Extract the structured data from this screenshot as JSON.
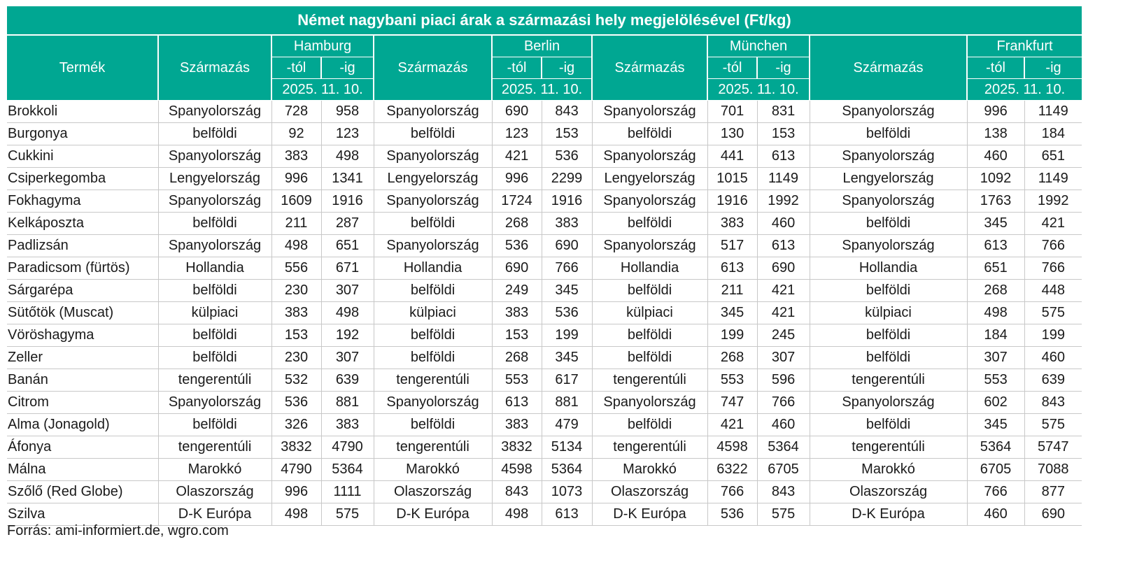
{
  "title": "Német nagybani piaci árak a származási hely megjelölésével (Ft/kg)",
  "headers": {
    "product": "Termék",
    "origin": "Származás",
    "from": "-tól",
    "to": "-ig",
    "date": "2025. 11. 10.",
    "cities": [
      "Hamburg",
      "Berlin",
      "München",
      "Frankfurt"
    ]
  },
  "rows": [
    [
      "Brokkoli",
      "Spanyolország",
      "728",
      "958",
      "Spanyolország",
      "690",
      "843",
      "Spanyolország",
      "701",
      "831",
      "Spanyolország",
      "996",
      "1149"
    ],
    [
      "Burgonya",
      "belföldi",
      "92",
      "123",
      "belföldi",
      "123",
      "153",
      "belföldi",
      "130",
      "153",
      "belföldi",
      "138",
      "184"
    ],
    [
      "Cukkini",
      "Spanyolország",
      "383",
      "498",
      "Spanyolország",
      "421",
      "536",
      "Spanyolország",
      "441",
      "613",
      "Spanyolország",
      "460",
      "651"
    ],
    [
      "Csiperkegomba",
      "Lengyelország",
      "996",
      "1341",
      "Lengyelország",
      "996",
      "2299",
      "Lengyelország",
      "1015",
      "1149",
      "Lengyelország",
      "1092",
      "1149"
    ],
    [
      "Fokhagyma",
      "Spanyolország",
      "1609",
      "1916",
      "Spanyolország",
      "1724",
      "1916",
      "Spanyolország",
      "1916",
      "1992",
      "Spanyolország",
      "1763",
      "1992"
    ],
    [
      "Kelkáposzta",
      "belföldi",
      "211",
      "287",
      "belföldi",
      "268",
      "383",
      "belföldi",
      "383",
      "460",
      "belföldi",
      "345",
      "421"
    ],
    [
      "Padlizsán",
      "Spanyolország",
      "498",
      "651",
      "Spanyolország",
      "536",
      "690",
      "Spanyolország",
      "517",
      "613",
      "Spanyolország",
      "613",
      "766"
    ],
    [
      "Paradicsom (fürtös)",
      "Hollandia",
      "556",
      "671",
      "Hollandia",
      "690",
      "766",
      "Hollandia",
      "613",
      "690",
      "Hollandia",
      "651",
      "766"
    ],
    [
      "Sárgarépa",
      "belföldi",
      "230",
      "307",
      "belföldi",
      "249",
      "345",
      "belföldi",
      "211",
      "421",
      "belföldi",
      "268",
      "448"
    ],
    [
      "Sütőtök (Muscat)",
      "külpiaci",
      "383",
      "498",
      "külpiaci",
      "383",
      "536",
      "külpiaci",
      "345",
      "421",
      "külpiaci",
      "498",
      "575"
    ],
    [
      "Vöröshagyma",
      "belföldi",
      "153",
      "192",
      "belföldi",
      "153",
      "199",
      "belföldi",
      "199",
      "245",
      "belföldi",
      "184",
      "199"
    ],
    [
      "Zeller",
      "belföldi",
      "230",
      "307",
      "belföldi",
      "268",
      "345",
      "belföldi",
      "268",
      "307",
      "belföldi",
      "307",
      "460"
    ],
    [
      "Banán",
      "tengerentúli",
      "532",
      "639",
      "tengerentúli",
      "553",
      "617",
      "tengerentúli",
      "553",
      "596",
      "tengerentúli",
      "553",
      "639"
    ],
    [
      "Citrom",
      "Spanyolország",
      "536",
      "881",
      "Spanyolország",
      "613",
      "881",
      "Spanyolország",
      "747",
      "766",
      "Spanyolország",
      "602",
      "843"
    ],
    [
      "Alma (Jonagold)",
      "belföldi",
      "326",
      "383",
      "belföldi",
      "383",
      "479",
      "belföldi",
      "421",
      "460",
      "belföldi",
      "345",
      "575"
    ],
    [
      "Áfonya",
      "tengerentúli",
      "3832",
      "4790",
      "tengerentúli",
      "3832",
      "5134",
      "tengerentúli",
      "4598",
      "5364",
      "tengerentúli",
      "5364",
      "5747"
    ],
    [
      "Málna",
      "Marokkó",
      "4790",
      "5364",
      "Marokkó",
      "4598",
      "5364",
      "Marokkó",
      "6322",
      "6705",
      "Marokkó",
      "6705",
      "7088"
    ],
    [
      "Szőlő (Red Globe)",
      "Olaszország",
      "996",
      "1111",
      "Olaszország",
      "843",
      "1073",
      "Olaszország",
      "766",
      "843",
      "Olaszország",
      "766",
      "877"
    ],
    [
      "Szilva",
      "D-K Európa",
      "498",
      "575",
      "D-K Európa",
      "498",
      "613",
      "D-K Európa",
      "536",
      "575",
      "D-K Európa",
      "460",
      "690"
    ]
  ],
  "source": "Forrás: ami-informiert.de, wgro.com",
  "colors": {
    "header_bg": "#00a792",
    "header_text": "#ffffff",
    "grid": "#c8c8c8"
  }
}
